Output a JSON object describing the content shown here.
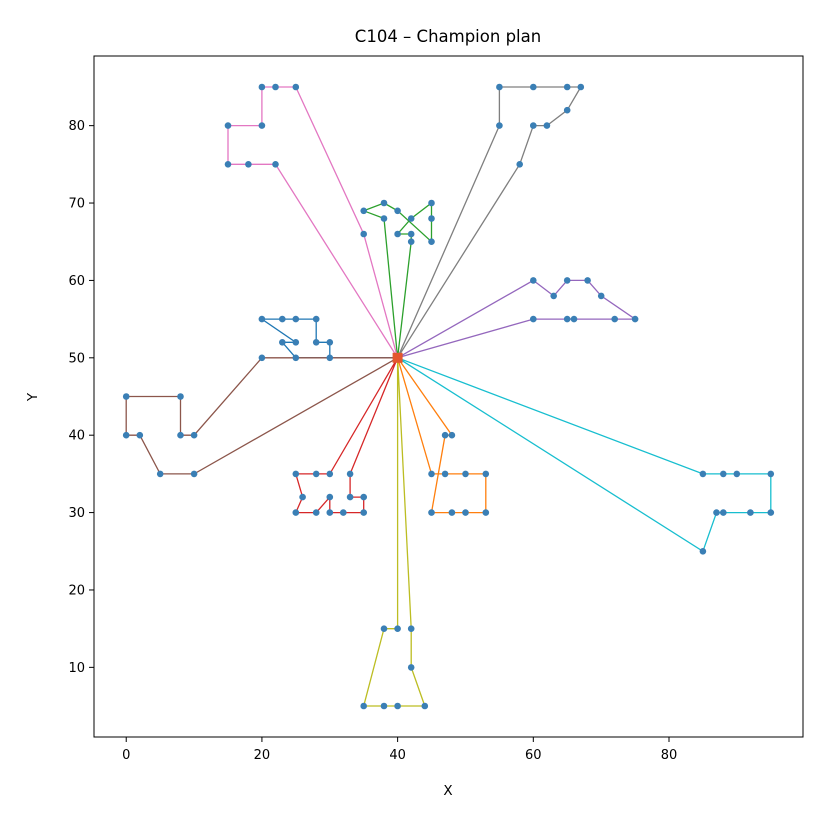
{
  "chart_data": {
    "type": "scatter",
    "title": "C104 – Champion plan",
    "xlabel": "X",
    "ylabel": "Y",
    "xlim": [
      -4.75,
      99.75
    ],
    "ylim": [
      1.0,
      89.0
    ],
    "xticks": [
      0,
      20,
      40,
      60,
      80
    ],
    "yticks": [
      10,
      20,
      30,
      40,
      50,
      60,
      70,
      80
    ],
    "grid": false,
    "legend": "none",
    "depot": {
      "x": 40,
      "y": 50,
      "color": "#e4572e"
    },
    "point_color": "#3a7fb5",
    "routes": [
      {
        "color": "#1f77b4",
        "points": [
          [
            40,
            50
          ],
          [
            30,
            50
          ],
          [
            30,
            52
          ],
          [
            28,
            52
          ],
          [
            28,
            55
          ],
          [
            25,
            55
          ],
          [
            23,
            55
          ],
          [
            20,
            55
          ],
          [
            25,
            52
          ],
          [
            23,
            52
          ],
          [
            25,
            50
          ],
          [
            40,
            50
          ]
        ]
      },
      {
        "color": "#ff7f0e",
        "points": [
          [
            40,
            50
          ],
          [
            45,
            35
          ],
          [
            47,
            35
          ],
          [
            50,
            35
          ],
          [
            53,
            35
          ],
          [
            53,
            30
          ],
          [
            50,
            30
          ],
          [
            48,
            30
          ],
          [
            45,
            30
          ],
          [
            47,
            40
          ],
          [
            48,
            40
          ],
          [
            40,
            50
          ]
        ]
      },
      {
        "color": "#2ca02c",
        "points": [
          [
            40,
            50
          ],
          [
            42,
            65
          ],
          [
            42,
            66
          ],
          [
            40,
            66
          ],
          [
            42,
            68
          ],
          [
            45,
            70
          ],
          [
            45,
            68
          ],
          [
            45,
            65
          ],
          [
            40,
            69
          ],
          [
            38,
            70
          ],
          [
            35,
            69
          ],
          [
            38,
            68
          ],
          [
            40,
            50
          ]
        ]
      },
      {
        "color": "#d62728",
        "points": [
          [
            40,
            50
          ],
          [
            33,
            35
          ],
          [
            33,
            32
          ],
          [
            35,
            32
          ],
          [
            35,
            30
          ],
          [
            32,
            30
          ],
          [
            30,
            30
          ],
          [
            30,
            32
          ],
          [
            28,
            30
          ],
          [
            25,
            30
          ],
          [
            26,
            32
          ],
          [
            25,
            35
          ],
          [
            28,
            35
          ],
          [
            30,
            35
          ],
          [
            40,
            50
          ]
        ]
      },
      {
        "color": "#9467bd",
        "points": [
          [
            40,
            50
          ],
          [
            60,
            60
          ],
          [
            63,
            58
          ],
          [
            65,
            60
          ],
          [
            68,
            60
          ],
          [
            70,
            58
          ],
          [
            75,
            55
          ],
          [
            72,
            55
          ],
          [
            66,
            55
          ],
          [
            65,
            55
          ],
          [
            60,
            55
          ],
          [
            40,
            50
          ]
        ]
      },
      {
        "color": "#8c564b",
        "points": [
          [
            40,
            50
          ],
          [
            10,
            35
          ],
          [
            5,
            35
          ],
          [
            2,
            40
          ],
          [
            0,
            40
          ],
          [
            0,
            45
          ],
          [
            8,
            45
          ],
          [
            8,
            40
          ],
          [
            10,
            40
          ],
          [
            20,
            50
          ],
          [
            40,
            50
          ]
        ]
      },
      {
        "color": "#e377c2",
        "points": [
          [
            40,
            50
          ],
          [
            22,
            75
          ],
          [
            18,
            75
          ],
          [
            15,
            75
          ],
          [
            15,
            80
          ],
          [
            20,
            80
          ],
          [
            20,
            85
          ],
          [
            22,
            85
          ],
          [
            25,
            85
          ],
          [
            35,
            66
          ],
          [
            40,
            50
          ]
        ]
      },
      {
        "color": "#7f7f7f",
        "points": [
          [
            40,
            50
          ],
          [
            58,
            75
          ],
          [
            60,
            80
          ],
          [
            62,
            80
          ],
          [
            65,
            82
          ],
          [
            67,
            85
          ],
          [
            65,
            85
          ],
          [
            60,
            85
          ],
          [
            55,
            85
          ],
          [
            55,
            80
          ],
          [
            40,
            50
          ]
        ]
      },
      {
        "color": "#bcbd22",
        "points": [
          [
            40,
            50
          ],
          [
            40,
            15
          ],
          [
            38,
            15
          ],
          [
            35,
            5
          ],
          [
            38,
            5
          ],
          [
            40,
            5
          ],
          [
            44,
            5
          ],
          [
            42,
            10
          ],
          [
            42,
            15
          ],
          [
            40,
            50
          ]
        ]
      },
      {
        "color": "#17becf",
        "points": [
          [
            40,
            50
          ],
          [
            85,
            35
          ],
          [
            88,
            35
          ],
          [
            90,
            35
          ],
          [
            95,
            35
          ],
          [
            95,
            30
          ],
          [
            92,
            30
          ],
          [
            88,
            30
          ],
          [
            87,
            30
          ],
          [
            85,
            25
          ],
          [
            40,
            50
          ]
        ]
      }
    ]
  }
}
